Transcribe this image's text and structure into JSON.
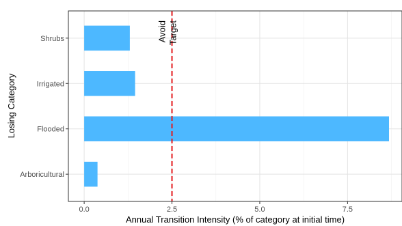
{
  "chart_data": {
    "type": "bar",
    "orientation": "horizontal",
    "categories": [
      "Arboricultural",
      "Flooded",
      "Irrigated",
      "Shrubs"
    ],
    "values": [
      0.38,
      8.68,
      1.45,
      1.3
    ],
    "xlabel": "Annual Transition Intensity (% of category at initial time)",
    "ylabel": "Losing Category",
    "xlim": [
      -0.45,
      9.05
    ],
    "xticks": [
      {
        "value": 0,
        "label": "0.0"
      },
      {
        "value": 2.5,
        "label": "2.5"
      },
      {
        "value": 5,
        "label": "5.0"
      },
      {
        "value": 7.5,
        "label": "7.5"
      }
    ],
    "grid": true,
    "bar_color": "#4db8ff",
    "reference_line": {
      "value": 2.5,
      "color": "#e41a1c",
      "style": "dashed",
      "label_left": "Avoid",
      "label_right": "Target"
    }
  }
}
